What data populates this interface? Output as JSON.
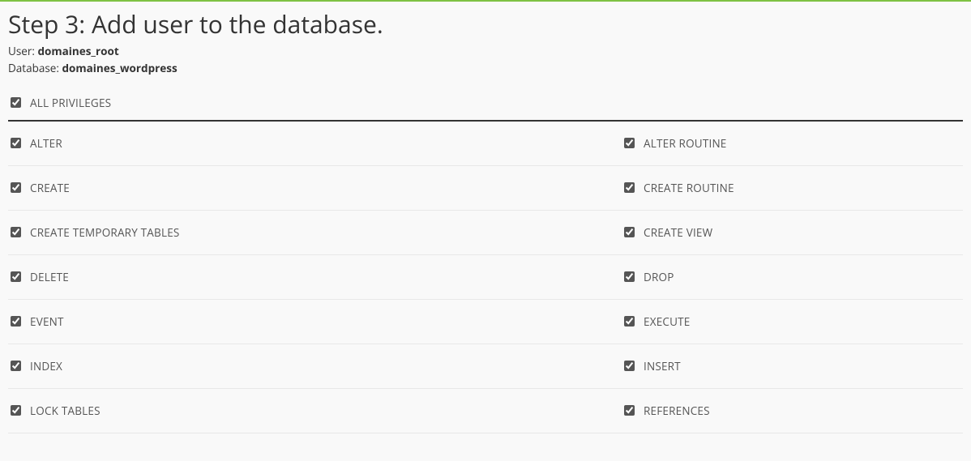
{
  "header": {
    "title": "Step 3: Add user to the database.",
    "user_label": "User: ",
    "user_value": "domaines_root",
    "database_label": "Database: ",
    "database_value": "domaines_wordpress"
  },
  "all_privileges": {
    "label": "ALL PRIVILEGES",
    "checked": true
  },
  "privileges": [
    {
      "left": {
        "label": "ALTER",
        "checked": true
      },
      "right": {
        "label": "ALTER ROUTINE",
        "checked": true
      }
    },
    {
      "left": {
        "label": "CREATE",
        "checked": true
      },
      "right": {
        "label": "CREATE ROUTINE",
        "checked": true
      }
    },
    {
      "left": {
        "label": "CREATE TEMPORARY TABLES",
        "checked": true
      },
      "right": {
        "label": "CREATE VIEW",
        "checked": true
      }
    },
    {
      "left": {
        "label": "DELETE",
        "checked": true
      },
      "right": {
        "label": "DROP",
        "checked": true
      }
    },
    {
      "left": {
        "label": "EVENT",
        "checked": true
      },
      "right": {
        "label": "EXECUTE",
        "checked": true
      }
    },
    {
      "left": {
        "label": "INDEX",
        "checked": true
      },
      "right": {
        "label": "INSERT",
        "checked": true
      }
    },
    {
      "left": {
        "label": "LOCK TABLES",
        "checked": true
      },
      "right": {
        "label": "REFERENCES",
        "checked": true
      }
    }
  ],
  "colors": {
    "top_border": "#7ec243",
    "background": "#f9f9f9",
    "heading": "#333333",
    "text": "#555555",
    "divider_strong": "#333333",
    "divider_light": "#e8e8e8"
  }
}
